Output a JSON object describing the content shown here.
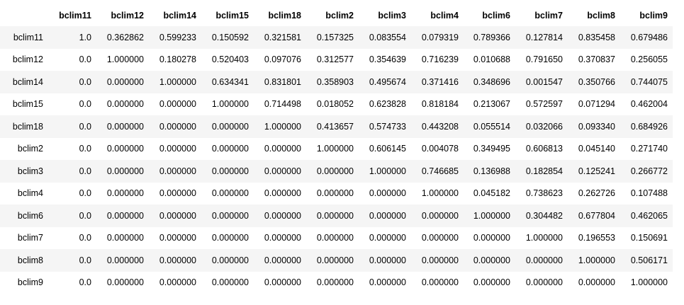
{
  "table": {
    "columns": [
      "",
      "bclim11",
      "bclim12",
      "bclim14",
      "bclim15",
      "bclim18",
      "bclim2",
      "bclim3",
      "bclim4",
      "bclim6",
      "bclim7",
      "bclim8",
      "bclim9"
    ],
    "rows": [
      {
        "index": "bclim11",
        "values": [
          "1.0",
          "0.362862",
          "0.599233",
          "0.150592",
          "0.321581",
          "0.157325",
          "0.083554",
          "0.079319",
          "0.789366",
          "0.127814",
          "0.835458",
          "0.679486"
        ]
      },
      {
        "index": "bclim12",
        "values": [
          "0.0",
          "1.000000",
          "0.180278",
          "0.520403",
          "0.097076",
          "0.312577",
          "0.354639",
          "0.716239",
          "0.010688",
          "0.791650",
          "0.370837",
          "0.256055"
        ]
      },
      {
        "index": "bclim14",
        "values": [
          "0.0",
          "0.000000",
          "1.000000",
          "0.634341",
          "0.831801",
          "0.358903",
          "0.495674",
          "0.371416",
          "0.348696",
          "0.001547",
          "0.350766",
          "0.744075"
        ]
      },
      {
        "index": "bclim15",
        "values": [
          "0.0",
          "0.000000",
          "0.000000",
          "1.000000",
          "0.714498",
          "0.018052",
          "0.623828",
          "0.818184",
          "0.213067",
          "0.572597",
          "0.071294",
          "0.462004"
        ]
      },
      {
        "index": "bclim18",
        "values": [
          "0.0",
          "0.000000",
          "0.000000",
          "0.000000",
          "1.000000",
          "0.413657",
          "0.574733",
          "0.443208",
          "0.055514",
          "0.032066",
          "0.093340",
          "0.684926"
        ]
      },
      {
        "index": "bclim2",
        "values": [
          "0.0",
          "0.000000",
          "0.000000",
          "0.000000",
          "0.000000",
          "1.000000",
          "0.606145",
          "0.004078",
          "0.349495",
          "0.606813",
          "0.045140",
          "0.271740"
        ]
      },
      {
        "index": "bclim3",
        "values": [
          "0.0",
          "0.000000",
          "0.000000",
          "0.000000",
          "0.000000",
          "0.000000",
          "1.000000",
          "0.746685",
          "0.136988",
          "0.182854",
          "0.125241",
          "0.266772"
        ]
      },
      {
        "index": "bclim4",
        "values": [
          "0.0",
          "0.000000",
          "0.000000",
          "0.000000",
          "0.000000",
          "0.000000",
          "0.000000",
          "1.000000",
          "0.045182",
          "0.738623",
          "0.262726",
          "0.107488"
        ]
      },
      {
        "index": "bclim6",
        "values": [
          "0.0",
          "0.000000",
          "0.000000",
          "0.000000",
          "0.000000",
          "0.000000",
          "0.000000",
          "0.000000",
          "1.000000",
          "0.304482",
          "0.677804",
          "0.462065"
        ]
      },
      {
        "index": "bclim7",
        "values": [
          "0.0",
          "0.000000",
          "0.000000",
          "0.000000",
          "0.000000",
          "0.000000",
          "0.000000",
          "0.000000",
          "0.000000",
          "1.000000",
          "0.196553",
          "0.150691"
        ]
      },
      {
        "index": "bclim8",
        "values": [
          "0.0",
          "0.000000",
          "0.000000",
          "0.000000",
          "0.000000",
          "0.000000",
          "0.000000",
          "0.000000",
          "0.000000",
          "0.000000",
          "1.000000",
          "0.506171"
        ]
      },
      {
        "index": "bclim9",
        "values": [
          "0.0",
          "0.000000",
          "0.000000",
          "0.000000",
          "0.000000",
          "0.000000",
          "0.000000",
          "0.000000",
          "0.000000",
          "0.000000",
          "0.000000",
          "1.000000"
        ]
      }
    ]
  },
  "colors": {
    "stripe": "#f5f5f5",
    "background": "#ffffff",
    "text": "#000000"
  }
}
